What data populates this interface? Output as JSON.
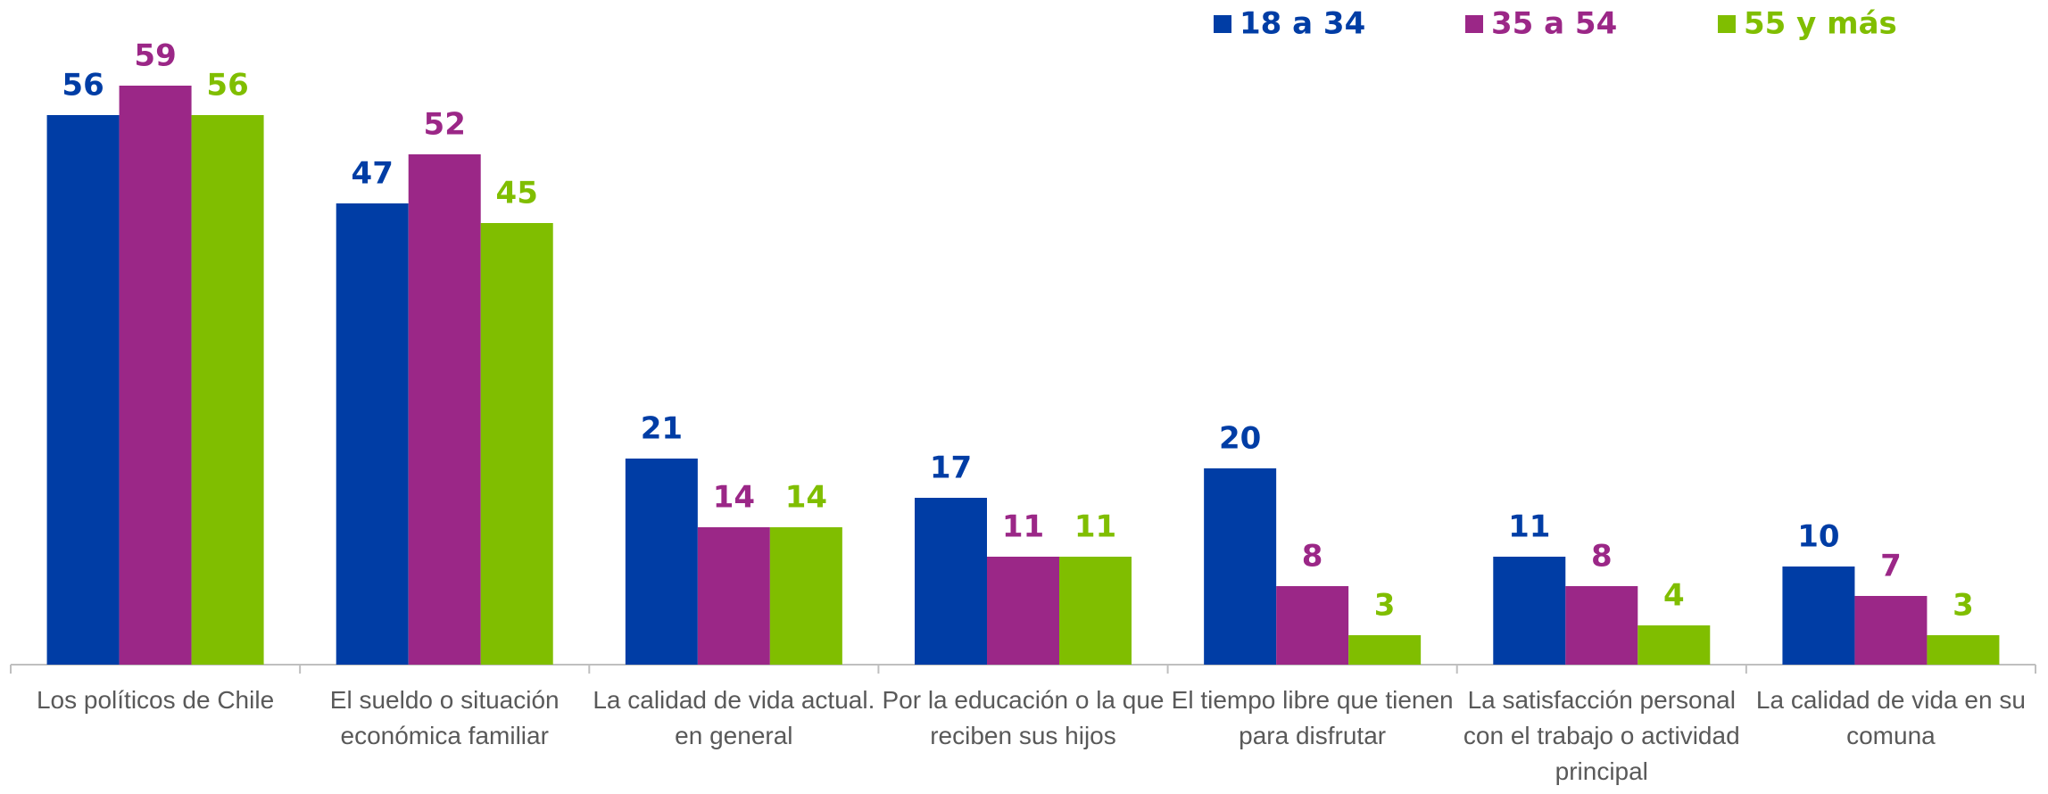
{
  "chart_data": {
    "type": "bar",
    "categories": [
      "Los políticos de Chile",
      "El sueldo o situación económica familiar",
      "La calidad de vida actual. en general",
      "Por la educación o la que reciben sus hijos",
      "El tiempo libre que tienen para disfrutar",
      "La satisfacción personal con el trabajo o actividad principal",
      "La calidad de vida en su comuna"
    ],
    "series": [
      {
        "name": "18 a 34",
        "color": "#003da5",
        "values": [
          56,
          47,
          21,
          17,
          20,
          11,
          10
        ]
      },
      {
        "name": "35 a 54",
        "color": "#9b2787",
        "values": [
          59,
          52,
          14,
          11,
          8,
          8,
          7
        ]
      },
      {
        "name": "55 y más",
        "color": "#80be00",
        "values": [
          56,
          45,
          14,
          11,
          3,
          4,
          3
        ]
      }
    ],
    "ylim": [
      0,
      60
    ],
    "legend": "top",
    "grid": false
  }
}
